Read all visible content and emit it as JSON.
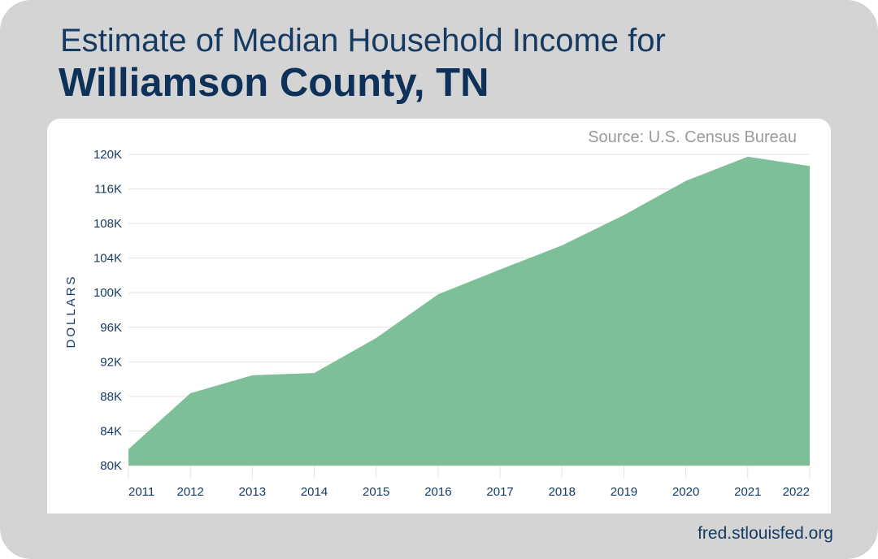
{
  "title": {
    "line1": "Estimate of Median Household Income for",
    "line2": "Williamson County, TN"
  },
  "footer": "fred.stlouisfed.org",
  "colors": {
    "background": "#d4d4d4",
    "panel": "#ffffff",
    "area_fill": "#7dbf98",
    "text": "#163b63",
    "source_text": "#9a9a9a",
    "grid": "#e3e3e3"
  },
  "chart_data": {
    "type": "area",
    "source": "Source: U.S. Census Bureau",
    "ylabel": "DOLLARS",
    "xlabel": "",
    "x": [
      "2011",
      "2012",
      "2013",
      "2014",
      "2015",
      "2016",
      "2017",
      "2018",
      "2019",
      "2020",
      "2021",
      "2022"
    ],
    "series": [
      {
        "values": [
          82100,
          89300,
          91600,
          91900,
          96400,
          102000,
          105200,
          108300,
          112200,
          116600,
          119700,
          118500
        ]
      }
    ],
    "y_ticks": [
      "80K",
      "84K",
      "88K",
      "92K",
      "96K",
      "100K",
      "104K",
      "108K",
      "116K",
      "120K"
    ],
    "ylim": [
      80000,
      120000
    ],
    "grid": true,
    "legend": "none"
  }
}
